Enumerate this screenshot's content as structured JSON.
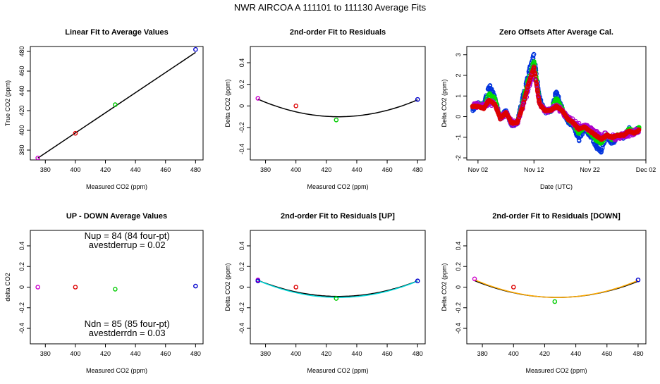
{
  "figure_title": "NWR   AIRCOA A    111101 to 111130    Average Fits",
  "chart_data": [
    {
      "id": "p1",
      "type": "scatter",
      "title": "Linear Fit to Average Values",
      "xlabel": "Measured CO2 (ppm)",
      "ylabel": "True CO2 (ppm)",
      "xlim": [
        370,
        485
      ],
      "ylim": [
        370,
        485
      ],
      "xticks": [
        380,
        400,
        420,
        440,
        460,
        480
      ],
      "yticks": [
        380,
        400,
        420,
        440,
        460,
        480
      ],
      "points": [
        {
          "x": 375,
          "y": 372,
          "color": "#cc00cc"
        },
        {
          "x": 400,
          "y": 397,
          "color": "#dd0000"
        },
        {
          "x": 426.5,
          "y": 426,
          "color": "#00cc00"
        },
        {
          "x": 480,
          "y": 482,
          "color": "#0000cc"
        }
      ],
      "fit": {
        "kind": "linear",
        "slope": 1.02,
        "intercept": -10.6,
        "color": "#000000"
      }
    },
    {
      "id": "p2",
      "type": "scatter",
      "title": "2nd-order Fit to Residuals",
      "xlabel": "Measured CO2 (ppm)",
      "ylabel": "Delta CO2 (ppm)",
      "xlim": [
        370,
        485
      ],
      "ylim": [
        -0.5,
        0.55
      ],
      "xticks": [
        380,
        400,
        420,
        440,
        460,
        480
      ],
      "yticks": [
        -0.4,
        -0.2,
        0.0,
        0.2,
        0.4
      ],
      "points": [
        {
          "x": 375,
          "y": 0.07,
          "color": "#cc00cc"
        },
        {
          "x": 400,
          "y": 0.0,
          "color": "#dd0000"
        },
        {
          "x": 426.5,
          "y": -0.13,
          "color": "#00cc00"
        },
        {
          "x": 480,
          "y": 0.06,
          "color": "#0000cc"
        }
      ],
      "curves": [
        {
          "name": "fit",
          "vertex_x": 428,
          "vertex_y": -0.1,
          "a": 5.79e-05,
          "color": "#000000"
        }
      ]
    },
    {
      "id": "p3",
      "type": "scatter",
      "title": "Zero Offsets After Average Cal.",
      "xlabel": "Date (UTC)",
      "ylabel": "Delta CO2 (ppm)",
      "xlim": [
        -1,
        31
      ],
      "ylim": [
        -2.1,
        3.4
      ],
      "xticks": [
        1,
        11,
        21,
        31
      ],
      "xtick_labels": [
        "Nov 02",
        "Nov 12",
        "Nov 22",
        "Dec 02"
      ],
      "yticks": [
        -2,
        -1,
        0,
        1,
        2,
        3
      ],
      "series": [
        {
          "name": "blue",
          "color": "#0033dd",
          "amp": 1.25,
          "noise": 0.14,
          "x": [
            0,
            1,
            2,
            3,
            4,
            5,
            6,
            7,
            8,
            9,
            10,
            11,
            12,
            13,
            14,
            15,
            16,
            17,
            18,
            19,
            20,
            21,
            22,
            23,
            24,
            25,
            26,
            27,
            28,
            29,
            30
          ],
          "y": [
            0.3,
            0.6,
            0.5,
            1.5,
            1.0,
            -0.1,
            0.3,
            -0.4,
            -0.3,
            0.9,
            2.1,
            3.0,
            0.9,
            0.2,
            0.3,
            1.2,
            0.4,
            -0.2,
            -0.4,
            -1.1,
            -0.6,
            -0.9,
            -1.4,
            -1.7,
            -0.9,
            -1.3,
            -0.9,
            -1.0,
            -0.6,
            -0.8,
            -0.5
          ]
        },
        {
          "name": "green",
          "color": "#00dd00",
          "amp": 1.0,
          "noise": 0.08,
          "x": [
            0,
            1,
            2,
            3,
            4,
            5,
            6,
            7,
            8,
            9,
            10,
            11,
            12,
            13,
            14,
            15,
            16,
            17,
            18,
            19,
            20,
            21,
            22,
            23,
            24,
            25,
            26,
            27,
            28,
            29,
            30
          ],
          "y": [
            0.5,
            0.6,
            0.5,
            1.1,
            0.9,
            -0.1,
            0.2,
            -0.3,
            -0.3,
            0.7,
            1.8,
            2.7,
            0.7,
            0.3,
            0.3,
            0.9,
            0.4,
            -0.1,
            -0.4,
            -0.8,
            -0.5,
            -0.8,
            -1.1,
            -1.3,
            -0.9,
            -1.1,
            -0.9,
            -0.9,
            -0.6,
            -0.7,
            -0.5
          ]
        },
        {
          "name": "purple",
          "color": "#aa00cc",
          "amp": 0.45,
          "noise": 0.2,
          "x": [
            0,
            1,
            2,
            3,
            4,
            5,
            6,
            7,
            8,
            9,
            10,
            11,
            12,
            13,
            14,
            15,
            16,
            17,
            18,
            19,
            20,
            21,
            22,
            23,
            24,
            25,
            26,
            27,
            28,
            29,
            30
          ],
          "y": [
            0.6,
            0.6,
            0.5,
            0.7,
            0.6,
            0.0,
            0.2,
            -0.3,
            -0.3,
            0.5,
            1.4,
            2.3,
            0.6,
            0.3,
            0.3,
            0.5,
            0.3,
            0.0,
            -0.3,
            -0.5,
            -0.4,
            -0.6,
            -0.8,
            -1.0,
            -0.9,
            -1.0,
            -1.0,
            -0.9,
            -0.8,
            -0.8,
            -0.6
          ]
        },
        {
          "name": "red",
          "color": "#dd0000",
          "amp": 0.3,
          "noise": 0.05,
          "x": [
            0,
            1,
            2,
            3,
            4,
            5,
            6,
            7,
            8,
            9,
            10,
            11,
            12,
            13,
            14,
            15,
            16,
            17,
            18,
            19,
            20,
            21,
            22,
            23,
            24,
            25,
            26,
            27,
            28,
            29,
            30
          ],
          "y": [
            0.5,
            0.5,
            0.4,
            0.8,
            0.6,
            -0.1,
            0.2,
            -0.3,
            -0.3,
            0.5,
            1.6,
            2.4,
            0.6,
            0.3,
            0.3,
            0.5,
            0.3,
            -0.1,
            -0.3,
            -0.6,
            -0.5,
            -0.7,
            -0.9,
            -1.1,
            -0.9,
            -1.0,
            -0.9,
            -0.9,
            -0.7,
            -0.8,
            -0.6
          ]
        }
      ]
    },
    {
      "id": "p4",
      "type": "scatter",
      "title": "UP - DOWN Average Values",
      "xlabel": "Measured CO2 (ppm)",
      "ylabel": "delta CO2",
      "xlim": [
        370,
        485
      ],
      "ylim": [
        -0.55,
        0.55
      ],
      "xticks": [
        380,
        400,
        420,
        440,
        460,
        480
      ],
      "yticks": [
        -0.4,
        -0.2,
        0.0,
        0.2,
        0.4
      ],
      "points": [
        {
          "x": 375,
          "y": 0.0,
          "color": "#cc00cc"
        },
        {
          "x": 400,
          "y": 0.0,
          "color": "#dd0000"
        },
        {
          "x": 426.5,
          "y": -0.02,
          "color": "#00cc00"
        },
        {
          "x": 480,
          "y": 0.01,
          "color": "#0000cc"
        }
      ],
      "annotations": [
        "Nup = 84 (84 four-pt)",
        "avestderrup =  0.02",
        "Ndn = 85 (85 four-pt)",
        "avestderrdn =  0.03"
      ]
    },
    {
      "id": "p5",
      "type": "scatter",
      "title": "2nd-order Fit to Residuals [UP]",
      "xlabel": "Measured CO2 (ppm)",
      "ylabel": "Delta CO2 (ppm)",
      "xlim": [
        370,
        485
      ],
      "ylim": [
        -0.55,
        0.55
      ],
      "xticks": [
        380,
        400,
        420,
        440,
        460,
        480
      ],
      "yticks": [
        -0.4,
        -0.2,
        0.0,
        0.2,
        0.4
      ],
      "points": [
        {
          "x": 375,
          "y": 0.07,
          "color": "#cc00cc"
        },
        {
          "x": 375,
          "y": 0.06,
          "color": "#0000cc"
        },
        {
          "x": 400,
          "y": 0.0,
          "color": "#dd0000"
        },
        {
          "x": 426.5,
          "y": -0.11,
          "color": "#00cc00"
        },
        {
          "x": 480,
          "y": 0.06,
          "color": "#0000cc"
        }
      ],
      "curves": [
        {
          "name": "fit",
          "vertex_x": 428,
          "vertex_y": -0.09,
          "a": 5.55e-05,
          "color": "#000000"
        },
        {
          "name": "up",
          "vertex_x": 428,
          "vertex_y": -0.1,
          "a": 5.85e-05,
          "color": "#00dddd"
        }
      ]
    },
    {
      "id": "p6",
      "type": "scatter",
      "title": "2nd-order Fit to Residuals [DOWN]",
      "xlabel": "Measured CO2 (ppm)",
      "ylabel": "Delta CO2 (ppm)",
      "xlim": [
        370,
        485
      ],
      "ylim": [
        -0.55,
        0.55
      ],
      "xticks": [
        380,
        400,
        420,
        440,
        460,
        480
      ],
      "yticks": [
        -0.4,
        -0.2,
        0.0,
        0.2,
        0.4
      ],
      "points": [
        {
          "x": 375,
          "y": 0.08,
          "color": "#cc00cc"
        },
        {
          "x": 400,
          "y": 0.0,
          "color": "#dd0000"
        },
        {
          "x": 426.5,
          "y": -0.14,
          "color": "#00cc00"
        },
        {
          "x": 480,
          "y": 0.07,
          "color": "#0000cc"
        }
      ],
      "curves": [
        {
          "name": "fit",
          "vertex_x": 428,
          "vertex_y": -0.1,
          "a": 5.79e-05,
          "color": "#000000"
        },
        {
          "name": "down",
          "vertex_x": 428,
          "vertex_y": -0.1,
          "a": 6.1e-05,
          "color": "#ffaa00"
        }
      ]
    }
  ]
}
